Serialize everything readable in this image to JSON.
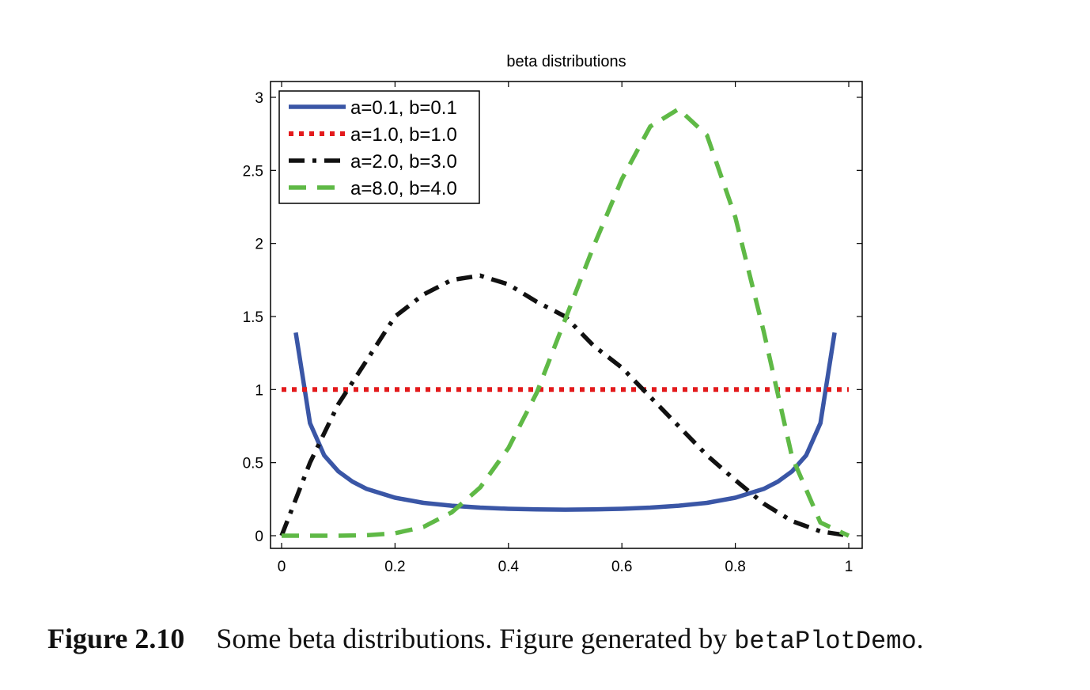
{
  "chart_data": {
    "type": "line",
    "title": "beta distributions",
    "xlabel": "",
    "ylabel": "",
    "xlim": [
      0,
      1
    ],
    "ylim": [
      0,
      3
    ],
    "xticks": [
      "0",
      "0.2",
      "0.4",
      "0.6",
      "0.8",
      "1"
    ],
    "yticks": [
      "0",
      "0.5",
      "1",
      "1.5",
      "2",
      "2.5",
      "3"
    ],
    "legend_position": "top-left",
    "grid": false,
    "series": [
      {
        "name": "a=0.1, b=0.1",
        "color": "#3a56a6",
        "style": "solid",
        "x": [
          0.025,
          0.05,
          0.075,
          0.1,
          0.125,
          0.15,
          0.2,
          0.25,
          0.3,
          0.35,
          0.4,
          0.45,
          0.5,
          0.55,
          0.6,
          0.65,
          0.7,
          0.75,
          0.8,
          0.85,
          0.875,
          0.9,
          0.925,
          0.95,
          0.975
        ],
        "y": [
          1.39,
          0.77,
          0.55,
          0.44,
          0.37,
          0.32,
          0.26,
          0.225,
          0.205,
          0.192,
          0.184,
          0.18,
          0.178,
          0.18,
          0.184,
          0.192,
          0.205,
          0.225,
          0.26,
          0.32,
          0.37,
          0.44,
          0.55,
          0.77,
          1.39
        ]
      },
      {
        "name": "a=1.0, b=1.0",
        "color": "#e31a1c",
        "style": "dotted",
        "x": [
          0,
          1
        ],
        "y": [
          1,
          1
        ]
      },
      {
        "name": "a=2.0, b=3.0",
        "color": "#111111",
        "style": "dashdot",
        "x": [
          0,
          0.05,
          0.1,
          0.15,
          0.2,
          0.25,
          0.3,
          0.35,
          0.4,
          0.45,
          0.5,
          0.55,
          0.6,
          0.65,
          0.7,
          0.75,
          0.8,
          0.85,
          0.9,
          0.95,
          1
        ],
        "y": [
          0,
          0.5,
          0.9,
          1.2,
          1.5,
          1.65,
          1.75,
          1.78,
          1.72,
          1.6,
          1.5,
          1.3,
          1.15,
          0.95,
          0.75,
          0.55,
          0.38,
          0.22,
          0.1,
          0.03,
          0
        ]
      },
      {
        "name": "a=8.0, b=4.0",
        "color": "#5fb946",
        "style": "dashed",
        "x": [
          0,
          0.05,
          0.1,
          0.15,
          0.2,
          0.25,
          0.3,
          0.35,
          0.4,
          0.45,
          0.5,
          0.55,
          0.6,
          0.65,
          0.7,
          0.75,
          0.8,
          0.85,
          0.9,
          0.95,
          1
        ],
        "y": [
          0,
          0,
          0,
          0.003,
          0.017,
          0.06,
          0.16,
          0.33,
          0.6,
          0.98,
          1.48,
          1.98,
          2.44,
          2.8,
          2.92,
          2.74,
          2.18,
          1.4,
          0.54,
          0.09,
          0
        ]
      }
    ]
  },
  "caption": {
    "label": "Figure 2.10",
    "text": "Some beta distributions. Figure generated by ",
    "code": "betaPlotDemo",
    "end": "."
  }
}
